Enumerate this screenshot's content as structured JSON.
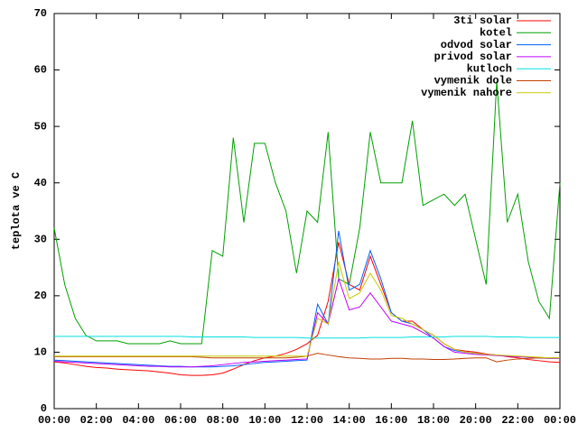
{
  "chart_data": {
    "type": "line",
    "ylabel": "teplota ve C",
    "xlim": [
      0,
      24
    ],
    "ylim": [
      0,
      70
    ],
    "xticks": [
      {
        "value": 0,
        "label": "00:00"
      },
      {
        "value": 2,
        "label": "02:00"
      },
      {
        "value": 4,
        "label": "04:00"
      },
      {
        "value": 6,
        "label": "06:00"
      },
      {
        "value": 8,
        "label": "08:00"
      },
      {
        "value": 10,
        "label": "10:00"
      },
      {
        "value": 12,
        "label": "12:00"
      },
      {
        "value": 14,
        "label": "14:00"
      },
      {
        "value": 16,
        "label": "16:00"
      },
      {
        "value": 18,
        "label": "18:00"
      },
      {
        "value": 20,
        "label": "20:00"
      },
      {
        "value": 22,
        "label": "22:00"
      },
      {
        "value": 24,
        "label": "00:00"
      }
    ],
    "yticks": [
      0,
      10,
      20,
      30,
      40,
      50,
      60,
      70
    ],
    "grid": false,
    "legend": "top-right",
    "x": [
      0,
      0.5,
      1,
      1.5,
      2,
      2.5,
      3,
      3.5,
      4,
      4.5,
      5,
      5.5,
      6,
      6.5,
      7,
      7.5,
      8,
      8.5,
      9,
      9.5,
      10,
      10.5,
      11,
      11.5,
      12,
      12.5,
      13,
      13.5,
      14,
      14.5,
      15,
      15.5,
      16,
      16.5,
      17,
      17.5,
      18,
      18.5,
      19,
      19.5,
      20,
      20.5,
      21,
      21.5,
      22,
      22.5,
      23,
      23.5,
      24
    ],
    "series": [
      {
        "name": "3ti solar",
        "color": "#ff0000",
        "values": [
          8.3,
          8.1,
          7.8,
          7.5,
          7.3,
          7.2,
          7.0,
          6.9,
          6.8,
          6.7,
          6.5,
          6.3,
          6.0,
          5.9,
          5.9,
          6.0,
          6.3,
          7.0,
          7.8,
          8.5,
          9.0,
          9.3,
          9.8,
          10.5,
          11.5,
          13.0,
          19.0,
          29.5,
          22.0,
          21.0,
          27.0,
          22.0,
          17.0,
          15.5,
          15.5,
          14.0,
          13.0,
          11.5,
          10.5,
          10.2,
          10.0,
          9.7,
          9.5,
          9.2,
          9.0,
          8.7,
          8.5,
          8.3,
          8.2
        ]
      },
      {
        "name": "kotel",
        "color": "#00a000",
        "values": [
          32,
          22,
          16,
          13,
          12,
          12,
          12,
          11.5,
          11.5,
          11.5,
          11.5,
          12,
          11.5,
          11.5,
          11.5,
          28,
          27,
          48,
          33,
          47,
          47,
          40,
          35,
          24,
          35,
          33,
          49,
          23,
          22,
          32,
          49,
          40,
          40,
          40,
          51,
          36,
          37,
          38,
          36,
          38,
          30,
          22,
          58,
          33,
          38,
          26,
          19,
          16,
          40
        ]
      },
      {
        "name": "odvod solar",
        "color": "#0060ff",
        "values": [
          8.6,
          8.5,
          8.4,
          8.3,
          8.2,
          8.1,
          8.0,
          7.9,
          7.8,
          7.7,
          7.6,
          7.5,
          7.5,
          7.4,
          7.4,
          7.4,
          7.5,
          7.6,
          7.8,
          8.0,
          8.2,
          8.3,
          8.4,
          8.5,
          8.6,
          18.5,
          15,
          31.5,
          21,
          22,
          28,
          23,
          17,
          15.5,
          15,
          14,
          12.5,
          11,
          10.3,
          10,
          9.8,
          9.6,
          9.5,
          9.3,
          9.2,
          9.1,
          9,
          8.9,
          8.9
        ]
      },
      {
        "name": "privod solar",
        "color": "#c000ff",
        "values": [
          8.4,
          8.3,
          8.2,
          8.1,
          8.0,
          7.9,
          7.8,
          7.7,
          7.6,
          7.5,
          7.5,
          7.4,
          7.4,
          7.4,
          7.5,
          7.6,
          7.8,
          8.0,
          8.2,
          8.3,
          8.4,
          8.5,
          8.6,
          8.7,
          8.8,
          17,
          15,
          23,
          17.5,
          18,
          20.5,
          18,
          15.5,
          15,
          14.5,
          13.5,
          12.5,
          11,
          10,
          9.8,
          9.6,
          9.5,
          9.4,
          9.3,
          9.2,
          9.1,
          9,
          8.9,
          8.9
        ]
      },
      {
        "name": "kutloch",
        "color": "#00e0e0",
        "values": [
          12.8,
          12.8,
          12.8,
          12.8,
          12.8,
          12.8,
          12.8,
          12.8,
          12.8,
          12.8,
          12.8,
          12.8,
          12.8,
          12.7,
          12.7,
          12.7,
          12.7,
          12.7,
          12.7,
          12.6,
          12.6,
          12.6,
          12.6,
          12.6,
          12.5,
          12.5,
          12.5,
          12.5,
          12.5,
          12.5,
          12.6,
          12.6,
          12.6,
          12.6,
          12.7,
          12.7,
          12.7,
          12.7,
          12.8,
          12.8,
          12.8,
          12.8,
          12.7,
          12.7,
          12.7,
          12.6,
          12.6,
          12.6,
          12.6
        ]
      },
      {
        "name": "vymenik dole",
        "color": "#c04000",
        "values": [
          9.2,
          9.2,
          9.2,
          9.2,
          9.2,
          9.2,
          9.2,
          9.2,
          9.2,
          9.2,
          9.2,
          9.2,
          9.2,
          9.2,
          9.1,
          9.0,
          9.0,
          9.0,
          9.0,
          9.0,
          9.0,
          9.0,
          9.0,
          9.1,
          9.3,
          9.8,
          9.5,
          9.2,
          9.0,
          8.9,
          8.8,
          8.8,
          8.9,
          8.9,
          8.8,
          8.8,
          8.7,
          8.7,
          8.8,
          8.9,
          9.0,
          9.0,
          8.3,
          8.6,
          8.8,
          8.9,
          9.0,
          9.0,
          9.0
        ]
      },
      {
        "name": "vymenik nahore",
        "color": "#c8c800",
        "values": [
          9.3,
          9.3,
          9.3,
          9.3,
          9.3,
          9.3,
          9.3,
          9.3,
          9.3,
          9.3,
          9.3,
          9.3,
          9.3,
          9.3,
          9.3,
          9.3,
          9.3,
          9.3,
          9.3,
          9.3,
          9.3,
          9.3,
          9.3,
          9.3,
          9.3,
          16,
          15,
          26,
          19.5,
          20.5,
          24,
          21,
          16.5,
          16,
          15,
          14,
          13,
          11.5,
          10.5,
          10,
          9.8,
          9.6,
          9.5,
          9.4,
          9.3,
          9.2,
          9.1,
          9.0,
          9.0
        ]
      }
    ]
  }
}
